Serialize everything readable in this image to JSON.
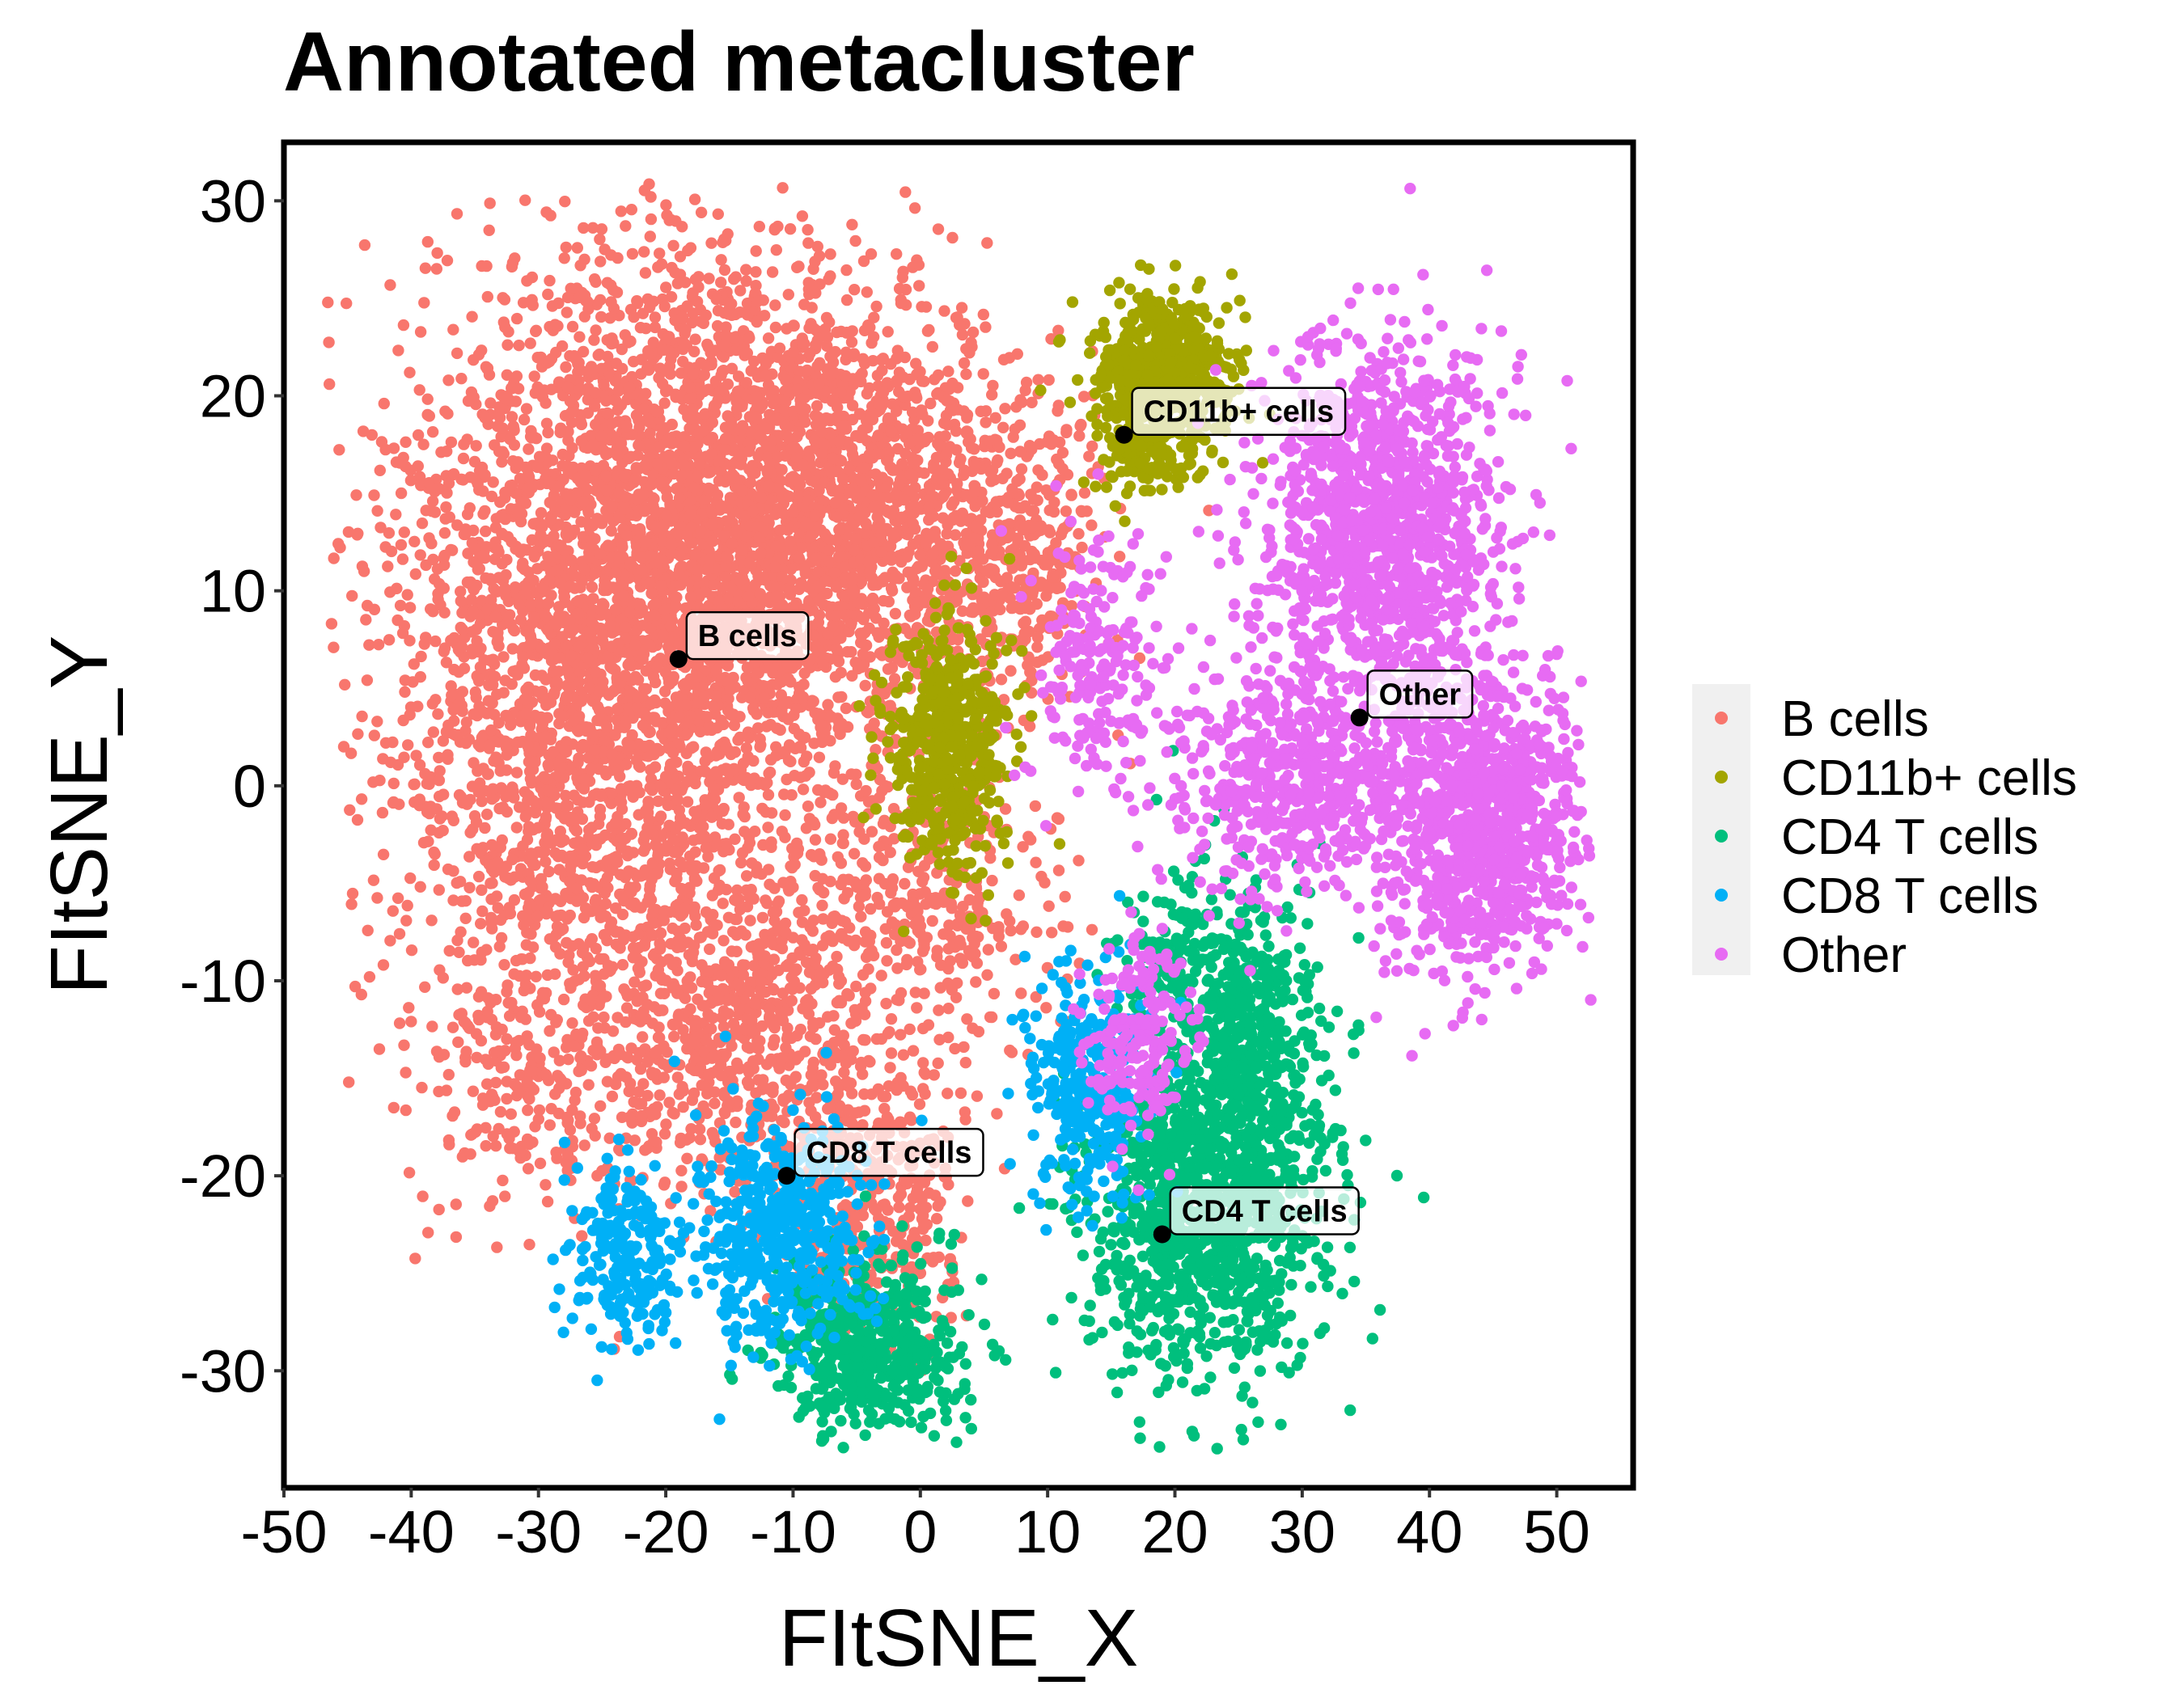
{
  "chart_data": {
    "type": "scatter",
    "title": "Annotated metacluster",
    "xlabel": "FItSNE_X",
    "ylabel": "FItSNE_Y",
    "xlim": [
      -50,
      56
    ],
    "ylim": [
      -36,
      33
    ],
    "x_ticks": [
      -50,
      -40,
      -30,
      -20,
      -10,
      0,
      10,
      20,
      30,
      40,
      50
    ],
    "x_tick_labels": [
      "-50",
      "-40",
      "-30",
      "-20",
      "-10",
      "0",
      "10",
      "20",
      "30",
      "40",
      "50"
    ],
    "y_ticks": [
      30,
      20,
      10,
      0,
      -10,
      -20,
      -30
    ],
    "y_tick_labels": [
      "30",
      "20",
      "10",
      "0",
      "-10",
      "-20",
      "-30"
    ],
    "grid": false,
    "legend_position": "right",
    "series": [
      {
        "name": "B cells",
        "color": "#F8766D",
        "clusters": [
          {
            "cx": -20,
            "cy": 12,
            "sx": 11.5,
            "sy": 9.5,
            "n": 3200
          },
          {
            "cx": -27,
            "cy": 0,
            "sx": 9,
            "sy": 10,
            "n": 1200
          },
          {
            "cx": -8,
            "cy": 14,
            "sx": 7,
            "sy": 7,
            "n": 900
          },
          {
            "cx": -14,
            "cy": -12,
            "sx": 9,
            "sy": 6,
            "n": 900
          },
          {
            "cx": 1,
            "cy": 14,
            "sx": 7,
            "sy": 5,
            "n": 500
          },
          {
            "cx": 8,
            "cy": 12,
            "sx": 4,
            "sy": 4,
            "n": 200
          },
          {
            "cx": -4,
            "cy": -22,
            "sx": 4,
            "sy": 4,
            "n": 350
          },
          {
            "cx": 2,
            "cy": -6,
            "sx": 5,
            "sy": 4,
            "n": 250
          },
          {
            "cx": -32,
            "cy": -16,
            "sx": 5,
            "sy": 3,
            "n": 120
          }
        ],
        "centroid": [
          -19,
          6.5
        ]
      },
      {
        "name": "CD11b+ cells",
        "color": "#A3A500",
        "clusters": [
          {
            "cx": 19,
            "cy": 21,
            "sx": 3.2,
            "sy": 2.4,
            "n": 650
          },
          {
            "cx": 2,
            "cy": 2,
            "sx": 2.8,
            "sy": 3.8,
            "n": 520
          },
          {
            "cx": 17,
            "cy": 17,
            "sx": 2,
            "sy": 1.5,
            "n": 80
          }
        ],
        "centroid": [
          16,
          18
        ]
      },
      {
        "name": "CD4 T cells",
        "color": "#00BF7D",
        "clusters": [
          {
            "cx": 22,
            "cy": -22,
            "sx": 5.5,
            "sy": 5,
            "n": 1100
          },
          {
            "cx": 26,
            "cy": -13,
            "sx": 3.5,
            "sy": 5,
            "n": 450
          },
          {
            "cx": -4,
            "cy": -29,
            "sx": 4.5,
            "sy": 2.8,
            "n": 550
          },
          {
            "cx": 20,
            "cy": -9,
            "sx": 2.5,
            "sy": 2.5,
            "n": 120
          }
        ],
        "centroid": [
          19,
          -23
        ]
      },
      {
        "name": "CD8 T cells",
        "color": "#00B0F6",
        "clusters": [
          {
            "cx": -11,
            "cy": -23,
            "sx": 4,
            "sy": 3.5,
            "n": 500
          },
          {
            "cx": -23,
            "cy": -24,
            "sx": 2.8,
            "sy": 2.5,
            "n": 220
          },
          {
            "cx": 13,
            "cy": -15,
            "sx": 2.8,
            "sy": 3.5,
            "n": 320
          }
        ],
        "centroid": [
          -10.5,
          -20
        ]
      },
      {
        "name": "Other",
        "color": "#E76BF3",
        "clusters": [
          {
            "cx": 36,
            "cy": 13,
            "sx": 5.5,
            "sy": 5.5,
            "n": 1300
          },
          {
            "cx": 44,
            "cy": -2,
            "sx": 4.5,
            "sy": 4.5,
            "n": 1000
          },
          {
            "cx": 30,
            "cy": 0,
            "sx": 6,
            "sy": 3.5,
            "n": 600
          },
          {
            "cx": 14,
            "cy": 6,
            "sx": 3,
            "sy": 4,
            "n": 200
          },
          {
            "cx": 17,
            "cy": -13,
            "sx": 2.5,
            "sy": 3,
            "n": 200
          }
        ],
        "centroid": [
          34.5,
          3.5
        ]
      }
    ]
  },
  "annotations": [
    {
      "label": "B cells",
      "x": -19,
      "y": 6.5
    },
    {
      "label": "CD11b+ cells",
      "x": 16,
      "y": 18
    },
    {
      "label": "Other",
      "x": 34.5,
      "y": 3.5
    },
    {
      "label": "CD8 T cells",
      "x": -10.5,
      "y": -20
    },
    {
      "label": "CD4 T cells",
      "x": 19,
      "y": -23
    }
  ]
}
